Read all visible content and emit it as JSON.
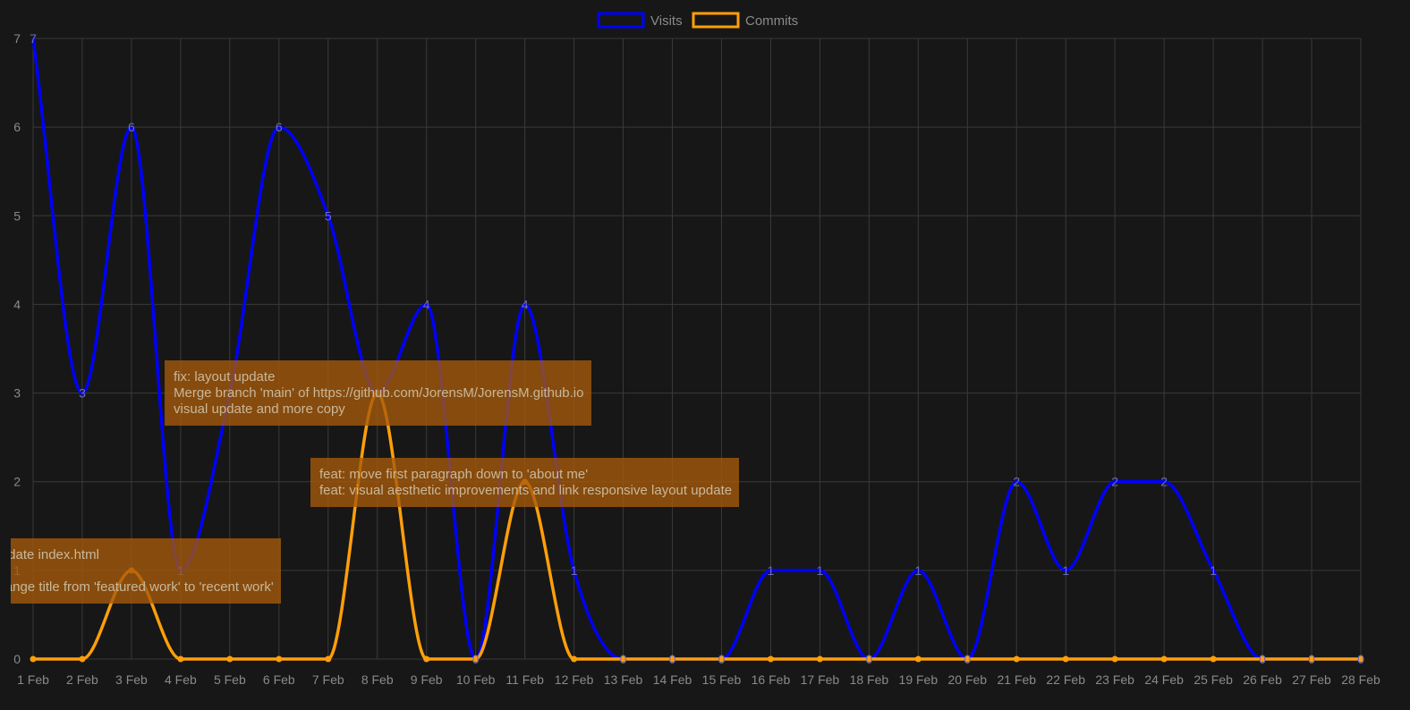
{
  "chart_data": {
    "type": "line",
    "categories": [
      "1 Feb",
      "2 Feb",
      "3 Feb",
      "4 Feb",
      "5 Feb",
      "6 Feb",
      "7 Feb",
      "8 Feb",
      "9 Feb",
      "10 Feb",
      "11 Feb",
      "12 Feb",
      "13 Feb",
      "14 Feb",
      "15 Feb",
      "16 Feb",
      "17 Feb",
      "18 Feb",
      "19 Feb",
      "20 Feb",
      "21 Feb",
      "22 Feb",
      "23 Feb",
      "24 Feb",
      "25 Feb",
      "26 Feb",
      "27 Feb",
      "28 Feb"
    ],
    "ylim": [
      0,
      7
    ],
    "yticks": [
      0,
      1,
      2,
      3,
      4,
      5,
      6,
      7
    ],
    "grid": true,
    "legend_position": "top-center",
    "series": [
      {
        "name": "Visits",
        "color": "#0000ff",
        "labels_shown": true,
        "values": [
          7,
          3,
          6,
          1,
          3,
          6,
          5,
          3,
          4,
          0,
          4,
          1,
          0,
          0,
          0,
          1,
          1,
          0,
          1,
          0,
          2,
          1,
          2,
          2,
          1,
          0,
          0,
          0
        ]
      },
      {
        "name": "Commits",
        "color": "#ff9f0a",
        "labels_shown": false,
        "values": [
          0,
          0,
          1,
          0,
          0,
          0,
          0,
          3,
          0,
          0,
          2,
          0,
          0,
          0,
          0,
          0,
          0,
          0,
          0,
          0,
          0,
          0,
          0,
          0,
          0,
          0,
          0,
          0
        ]
      }
    ],
    "annotations": [
      {
        "category_index": 2,
        "lines": [
          "Update index.html",
          "",
          "change title from 'featured work' to 'recent work'"
        ]
      },
      {
        "category_index": 7,
        "lines": [
          "fix: layout update",
          "Merge branch 'main' of https://github.com/JorensM/JorensM.github.io",
          "visual update and more copy"
        ]
      },
      {
        "category_index": 10,
        "lines": [
          "feat: move first paragraph down to 'about me'",
          "feat: visual aesthetic improvements and link responsive layout update"
        ]
      }
    ]
  }
}
